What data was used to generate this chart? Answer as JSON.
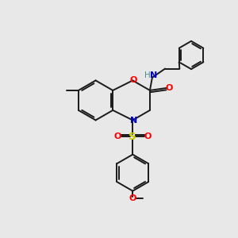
{
  "background_color": "#e8e8e8",
  "bond_color": "#1a1a1a",
  "atom_colors": {
    "O": "#ff0000",
    "N": "#0000cc",
    "S": "#cccc00",
    "H": "#4a9090",
    "C": "#1a1a1a"
  },
  "line_width": 1.4,
  "figsize": [
    3.0,
    3.0
  ],
  "dpi": 100
}
